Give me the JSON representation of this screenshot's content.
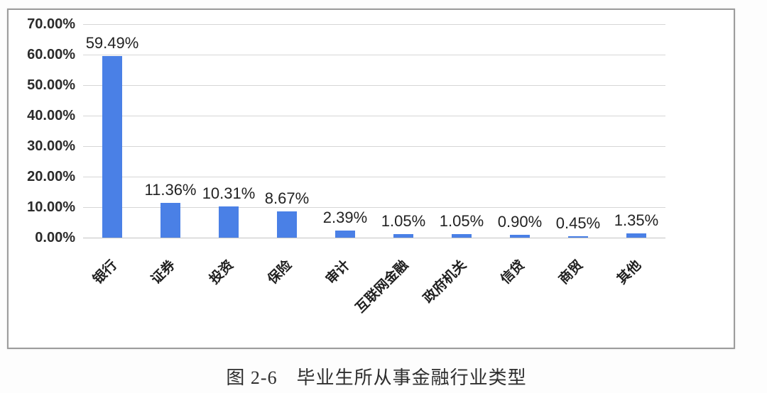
{
  "page": {
    "caption": "图 2-6　毕业生所从事金融行业类型"
  },
  "chart_data": {
    "type": "bar",
    "title": "",
    "xlabel": "",
    "ylabel": "",
    "categories": [
      "银行",
      "证券",
      "投资",
      "保险",
      "审计",
      "互联网金融",
      "政府机关",
      "信贷",
      "商贸",
      "其他"
    ],
    "values": [
      59.49,
      11.36,
      10.31,
      8.67,
      2.39,
      1.05,
      1.05,
      0.9,
      0.45,
      1.35
    ],
    "data_labels": [
      "59.49%",
      "11.36%",
      "10.31%",
      "8.67%",
      "2.39%",
      "1.05%",
      "1.05%",
      "0.90%",
      "0.45%",
      "1.35%"
    ],
    "ylim": [
      0,
      70
    ],
    "ytick_step": 10,
    "ytick_labels": [
      "0.00%",
      "10.00%",
      "20.00%",
      "30.00%",
      "40.00%",
      "50.00%",
      "60.00%",
      "70.00%"
    ],
    "grid": true,
    "legend": false,
    "bar_color": "#4a80e6",
    "gridline_color": "#d6d6d6",
    "label_color": "#222222"
  }
}
